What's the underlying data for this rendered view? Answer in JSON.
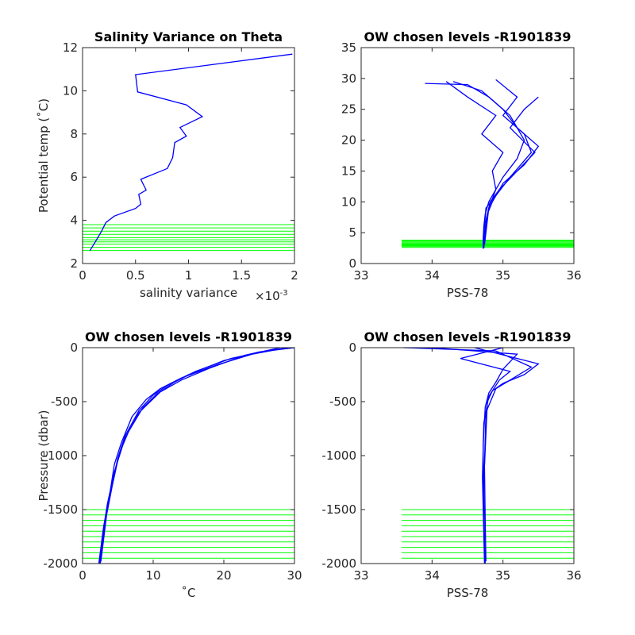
{
  "chart_data": [
    {
      "type": "line",
      "title": "Salinity Variance on Theta",
      "xlabel": "salinity variance",
      "ylabel": "Potential temp (˚C)",
      "x_multiplier": "×10",
      "x_exponent": "-3",
      "xlim": [
        0,
        2
      ],
      "xticks": [
        0,
        {
          "value": 0.5,
          "label": "0.5"
        },
        1,
        {
          "value": 1.5,
          "label": "1.5"
        },
        2
      ],
      "ylim": [
        2,
        12
      ],
      "yticks": [
        2,
        4,
        6,
        8,
        10,
        12
      ],
      "series": [
        {
          "color": "#0000ff",
          "x": [
            1.98,
            0.5,
            0.52,
            0.98,
            1.13,
            0.92,
            0.98,
            0.87,
            0.85,
            0.8,
            0.55,
            0.6,
            0.53,
            0.55,
            0.5,
            0.3,
            0.22,
            0.18,
            0.12,
            0.07
          ],
          "values": [
            11.7,
            10.75,
            9.95,
            9.35,
            8.8,
            8.3,
            7.9,
            7.6,
            6.9,
            6.4,
            5.9,
            5.4,
            5.2,
            4.75,
            4.55,
            4.2,
            3.9,
            3.5,
            3.0,
            2.6
          ]
        }
      ],
      "level_color": "#00ff00",
      "level_xrange": [
        0,
        2
      ],
      "levels": [
        2.6,
        2.75,
        2.9,
        3.0,
        3.1,
        3.2,
        3.35,
        3.5,
        3.65,
        3.8
      ]
    },
    {
      "type": "line",
      "title": "OW chosen levels -R1901839",
      "xlabel": "PSS-78",
      "xlim": [
        33,
        36
      ],
      "xticks": [
        33,
        34,
        35,
        36
      ],
      "ylim": [
        0,
        35
      ],
      "yticks": [
        0,
        5,
        10,
        15,
        20,
        25,
        30,
        35
      ],
      "series": [
        {
          "color": "#0000ff",
          "x": [
            34.72,
            34.72,
            34.73,
            34.75,
            34.8,
            34.9,
            35.0,
            35.2,
            35.3,
            35.1,
            34.8,
            34.5,
            33.9
          ],
          "values": [
            2.4,
            4,
            6,
            8,
            10,
            12,
            14,
            17,
            20,
            24,
            27,
            29,
            29.2
          ]
        },
        {
          "color": "#0000ff",
          "x": [
            34.73,
            34.75,
            34.78,
            34.85,
            35.0,
            35.3,
            35.5,
            35.2,
            35.0,
            34.7,
            34.3
          ],
          "values": [
            2.5,
            5,
            8,
            10,
            13,
            16,
            19,
            22,
            25,
            28,
            29.5
          ]
        },
        {
          "color": "#0000ff",
          "x": [
            34.72,
            34.74,
            34.76,
            34.9,
            35.1,
            35.4,
            35.3,
            35.0,
            35.2,
            34.9
          ],
          "values": [
            2.6,
            6,
            9,
            11,
            14,
            18,
            21,
            24,
            27,
            29.8
          ]
        },
        {
          "color": "#0000ff",
          "x": [
            34.73,
            34.76,
            34.82,
            34.95,
            35.2,
            35.45,
            35.1,
            35.3,
            35.5
          ],
          "values": [
            2.5,
            7,
            10,
            12,
            15,
            18,
            22,
            25,
            27
          ]
        },
        {
          "color": "#0000ff",
          "x": [
            34.74,
            34.8,
            34.9,
            34.85,
            35.0,
            34.7,
            34.9,
            34.5,
            34.2
          ],
          "values": [
            3,
            9,
            12,
            15,
            18,
            21,
            24,
            27,
            29.5
          ]
        }
      ],
      "level_color": "#00ff00",
      "level_xrange": [
        33.57,
        36
      ],
      "levels": [
        2.6,
        2.75,
        2.9,
        3.0,
        3.1,
        3.2,
        3.35,
        3.5,
        3.65,
        3.8
      ]
    },
    {
      "type": "line",
      "title": "OW chosen levels -R1901839",
      "xlabel": "˚C",
      "ylabel": "Pressure (dbar)",
      "xlim": [
        0,
        30
      ],
      "xticks": [
        0,
        10,
        20,
        30
      ],
      "ylim": [
        -2000,
        0
      ],
      "yticks": [
        -2000,
        -1500,
        -1000,
        -500,
        0
      ],
      "series": [
        {
          "color": "#0000ff",
          "x": [
            30,
            25,
            20,
            15,
            12,
            10,
            8,
            6,
            5,
            4,
            3.2,
            2.5
          ],
          "values": [
            0,
            -40,
            -120,
            -250,
            -350,
            -440,
            -580,
            -820,
            -1020,
            -1320,
            -1600,
            -2000
          ]
        },
        {
          "color": "#0000ff",
          "x": [
            29,
            24,
            19,
            14,
            11,
            9,
            7,
            5.5,
            4.5,
            3.8,
            3,
            2.3
          ],
          "values": [
            0,
            -60,
            -160,
            -280,
            -380,
            -480,
            -640,
            -880,
            -1080,
            -1380,
            -1650,
            -2000
          ]
        },
        {
          "color": "#0000ff",
          "x": [
            30,
            26,
            21,
            16,
            13,
            10.5,
            8.5,
            6.5,
            5.2,
            4.2,
            3.4,
            2.6
          ],
          "values": [
            0,
            -30,
            -100,
            -220,
            -320,
            -430,
            -560,
            -780,
            -980,
            -1280,
            -1550,
            -1980
          ]
        },
        {
          "color": "#0000ff",
          "x": [
            28,
            23,
            18,
            14,
            11,
            8,
            6,
            4.5,
            3.5,
            2.8,
            2.4
          ],
          "values": [
            0,
            -70,
            -190,
            -300,
            -410,
            -600,
            -840,
            -1150,
            -1450,
            -1750,
            -2000
          ]
        }
      ],
      "level_color": "#00ff00",
      "level_xrange": [
        0,
        30
      ],
      "levels": [
        -1500,
        -1550,
        -1600,
        -1650,
        -1700,
        -1750,
        -1800,
        -1850,
        -1900,
        -1950
      ]
    },
    {
      "type": "line",
      "title": "OW chosen levels -R1901839",
      "xlabel": "PSS-78",
      "xlim": [
        33,
        36
      ],
      "xticks": [
        33,
        34,
        35,
        36
      ],
      "ylim": [
        -2000,
        0
      ],
      "yticks": [
        -2000,
        -1500,
        -1000,
        -500,
        0
      ],
      "series": [
        {
          "color": "#0000ff",
          "x": [
            34.0,
            35.2,
            35.0,
            34.9,
            34.8,
            34.75,
            34.72,
            34.73,
            34.75
          ],
          "values": [
            0,
            -60,
            -200,
            -320,
            -420,
            -550,
            -900,
            -1500,
            -2000
          ]
        },
        {
          "color": "#0000ff",
          "x": [
            34.6,
            35.5,
            35.3,
            35.0,
            34.85,
            34.78,
            34.74,
            34.75,
            34.76
          ],
          "values": [
            0,
            -150,
            -250,
            -330,
            -400,
            -500,
            -1100,
            -1600,
            -1980
          ]
        },
        {
          "color": "#0000ff",
          "x": [
            35.0,
            34.4,
            35.1,
            34.95,
            34.8,
            34.73,
            34.71,
            34.74
          ],
          "values": [
            0,
            -100,
            -220,
            -300,
            -450,
            -700,
            -1200,
            -2000
          ]
        },
        {
          "color": "#0000ff",
          "x": [
            33.6,
            34.9,
            35.4,
            35.2,
            34.9,
            34.76,
            34.73,
            34.74
          ],
          "values": [
            0,
            -30,
            -180,
            -260,
            -380,
            -600,
            -1300,
            -1900
          ]
        }
      ],
      "level_color": "#00ff00",
      "level_xrange": [
        33.57,
        36
      ],
      "levels": [
        -1500,
        -1550,
        -1600,
        -1650,
        -1700,
        -1750,
        -1800,
        -1850,
        -1900,
        -1950
      ]
    }
  ]
}
